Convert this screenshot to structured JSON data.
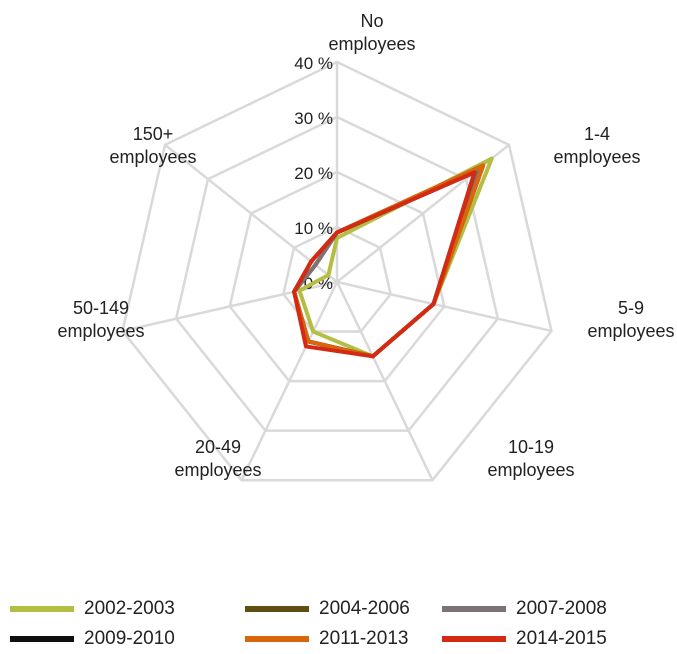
{
  "chart_data": {
    "type": "radar",
    "axes": [
      [
        "No",
        "employees"
      ],
      [
        "1-4",
        "employees"
      ],
      [
        "5-9",
        "employees"
      ],
      [
        "10-19",
        "employees"
      ],
      [
        "20-49",
        "employees"
      ],
      [
        "50-149",
        "employees"
      ],
      [
        "150+",
        "employees"
      ]
    ],
    "tick_labels": [
      "0 %",
      "10 %",
      "20 %",
      "30 %",
      "40 %"
    ],
    "rlim": [
      0,
      40
    ],
    "grid": true,
    "legend_position": "bottom",
    "series": [
      {
        "name": "2002-2003",
        "color": "#b5bd45",
        "values": [
          8,
          36,
          18,
          15,
          10,
          7,
          2
        ]
      },
      {
        "name": "2004-2006",
        "color": "#5e4e12",
        "values": [
          9,
          34,
          18,
          15,
          12,
          8,
          5
        ]
      },
      {
        "name": "2007-2008",
        "color": "#7f7275",
        "values": [
          9,
          33,
          18,
          15,
          12,
          8,
          5
        ]
      },
      {
        "name": "2009-2010",
        "color": "#0f0f0f",
        "values": [
          9,
          32,
          18,
          15,
          12,
          8,
          6
        ]
      },
      {
        "name": "2011-2013",
        "color": "#d9660b",
        "values": [
          9,
          34,
          18,
          15,
          12,
          8,
          6
        ]
      },
      {
        "name": "2014-2015",
        "color": "#d42a13",
        "values": [
          9,
          32,
          18,
          15,
          13,
          8,
          6
        ]
      }
    ]
  }
}
